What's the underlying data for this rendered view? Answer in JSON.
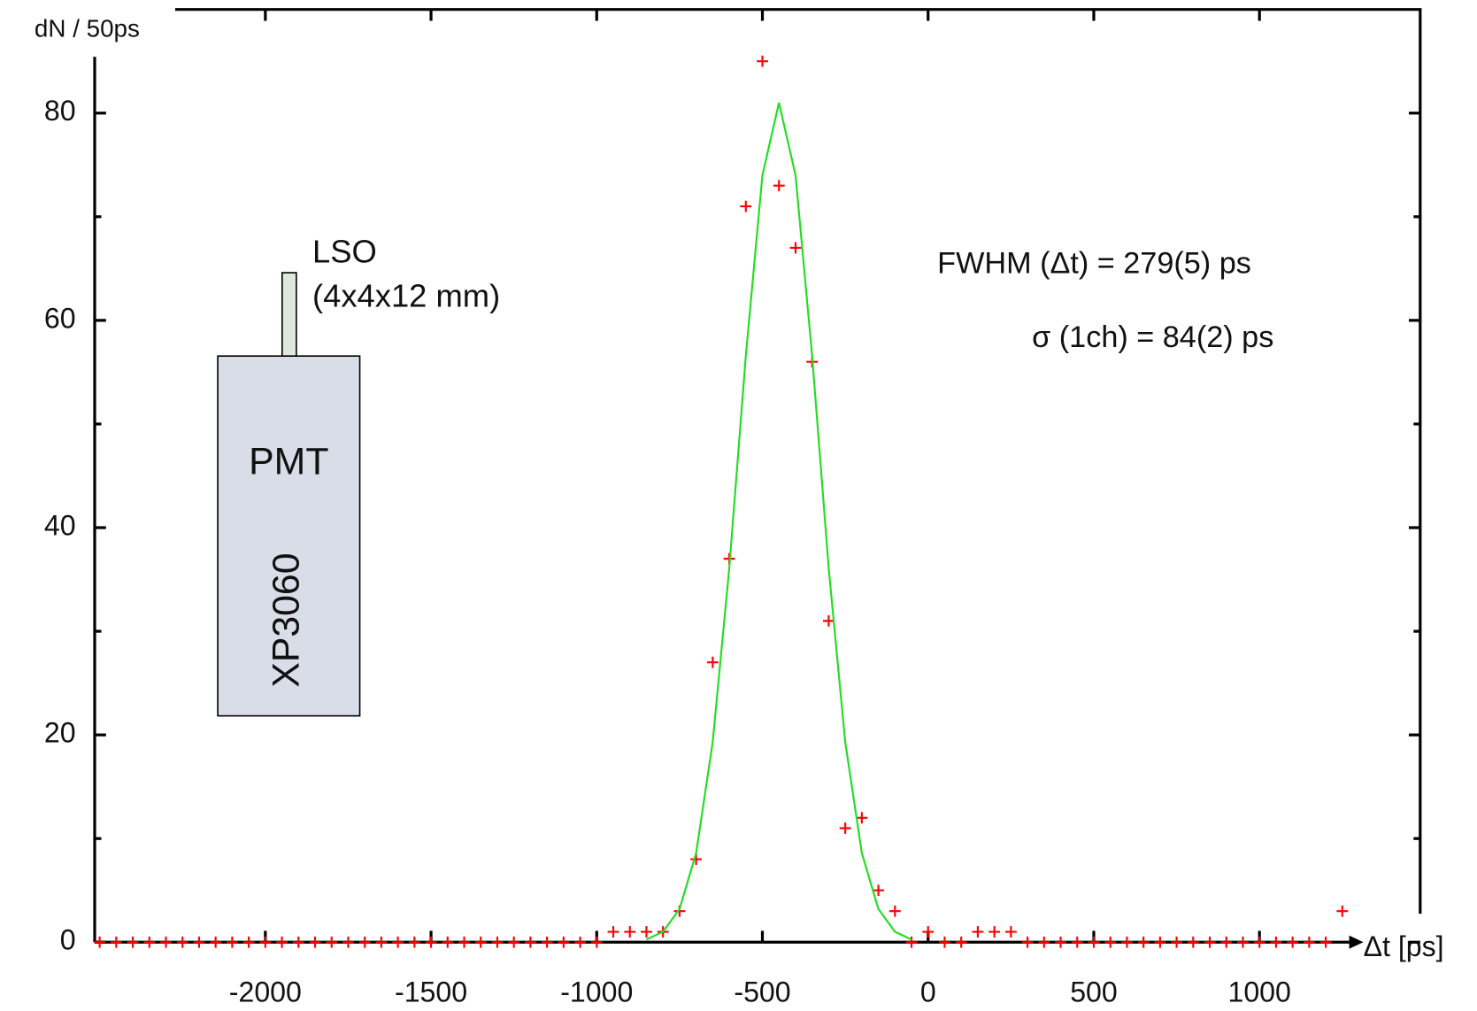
{
  "chart_data": {
    "type": "scatter",
    "y_label": "dN / 50ps",
    "x_label": "Δt [ps]",
    "annotations": [
      "LSO",
      "(4x4x12 mm)",
      "PMT",
      "XP3060",
      "FWHM (Δt)  = 279(5) ps",
      "σ (1ch) = 84(2) ps"
    ],
    "xlim": [
      -2515,
      1485
    ],
    "ylim": [
      0,
      90
    ],
    "xticks": [
      -2000,
      -1500,
      -1000,
      -500,
      0,
      500,
      1000
    ],
    "yticks": [
      0,
      20,
      40,
      60,
      80
    ],
    "yticks_minor": [
      10,
      30,
      50,
      70
    ],
    "series": [
      {
        "color": "#ff0000",
        "marker": "+",
        "x": [
          -2500,
          -2450,
          -2400,
          -2350,
          -2300,
          -2250,
          -2200,
          -2150,
          -2100,
          -2050,
          -2000,
          -1950,
          -1900,
          -1850,
          -1800,
          -1750,
          -1700,
          -1650,
          -1600,
          -1550,
          -1500,
          -1450,
          -1400,
          -1350,
          -1300,
          -1250,
          -1200,
          -1150,
          -1100,
          -1050,
          -1000,
          -950,
          -900,
          -850,
          -800,
          -750,
          -700,
          -650,
          -600,
          -550,
          -500,
          -450,
          -400,
          -350,
          -300,
          -250,
          -200,
          -150,
          -100,
          -50,
          0,
          50,
          100,
          150,
          200,
          250,
          300,
          350,
          400,
          450,
          500,
          550,
          600,
          650,
          700,
          750,
          800,
          850,
          900,
          950,
          1000,
          1050,
          1100,
          1150,
          1200,
          1250
        ],
        "values": [
          0,
          0,
          0,
          0,
          0,
          0,
          0,
          0,
          0,
          0,
          0,
          0,
          0,
          0,
          0,
          0,
          0,
          0,
          0,
          0,
          0,
          0,
          0,
          0,
          0,
          0,
          0,
          0,
          0,
          0,
          0,
          1,
          1,
          1,
          1,
          3,
          8,
          27,
          37,
          71,
          85,
          73,
          67,
          56,
          31,
          11,
          12,
          5,
          3,
          0,
          1,
          0,
          0,
          1,
          1,
          1,
          0,
          0,
          0,
          0,
          0,
          0,
          0,
          0,
          0,
          0,
          0,
          0,
          0,
          0,
          0,
          0,
          0,
          0,
          0,
          3
        ]
      },
      {
        "color": "#22dd22",
        "marker": "line",
        "x": [
          -850,
          -800,
          -750,
          -700,
          -650,
          -600,
          -550,
          -500,
          -450,
          -400,
          -350,
          -300,
          -250,
          -200,
          -150,
          -100,
          -50
        ],
        "values": [
          0.26,
          1.0,
          3.2,
          8.6,
          19.3,
          36.1,
          56.6,
          74.0,
          81,
          74.0,
          56.6,
          36.1,
          19.3,
          8.6,
          3.2,
          1.0,
          0.26
        ]
      }
    ]
  }
}
